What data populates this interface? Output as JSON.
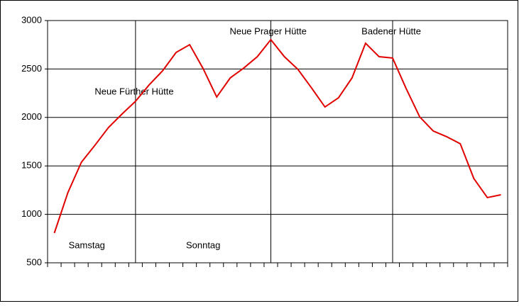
{
  "chart_data": {
    "type": "line",
    "categories": [
      null,
      null,
      null,
      null,
      null,
      null,
      null,
      null,
      null,
      null,
      null,
      null,
      null,
      null,
      null,
      null,
      null,
      null,
      null,
      null,
      null,
      null,
      null,
      null,
      null,
      null,
      null,
      null,
      null,
      null,
      null,
      null,
      null,
      null
    ],
    "series": [
      {
        "color": "#e00000",
        "values": [
          807,
          1224,
          1538,
          1713,
          1896,
          2035,
          2167,
          2335,
          2481,
          2671,
          2751,
          2503,
          2211,
          2408,
          2510,
          2627,
          2803,
          2627,
          2496,
          2306,
          2108,
          2203,
          2408,
          2766,
          2627,
          2613,
          2298,
          2006,
          1860,
          1801,
          1728,
          1370,
          1173,
          1202
        ]
      }
    ],
    "ylim": [
      500,
      3000
    ],
    "yticks": [
      500,
      1000,
      1500,
      2000,
      2500,
      3000
    ],
    "grid": true,
    "vlines": [
      6,
      16,
      25
    ],
    "annotations": [
      {
        "text": "Neue Fürther Hütte",
        "x": 5.9,
        "y": 2262
      },
      {
        "text": "Neue Prager Hütte",
        "x": 15.8,
        "y": 2883
      },
      {
        "text": "Badener Hütte",
        "x": 24.9,
        "y": 2883
      },
      {
        "text": "Samstag",
        "x": 2.4,
        "y": 675
      },
      {
        "text": "Sonntag",
        "x": 11.0,
        "y": 675
      }
    ]
  }
}
